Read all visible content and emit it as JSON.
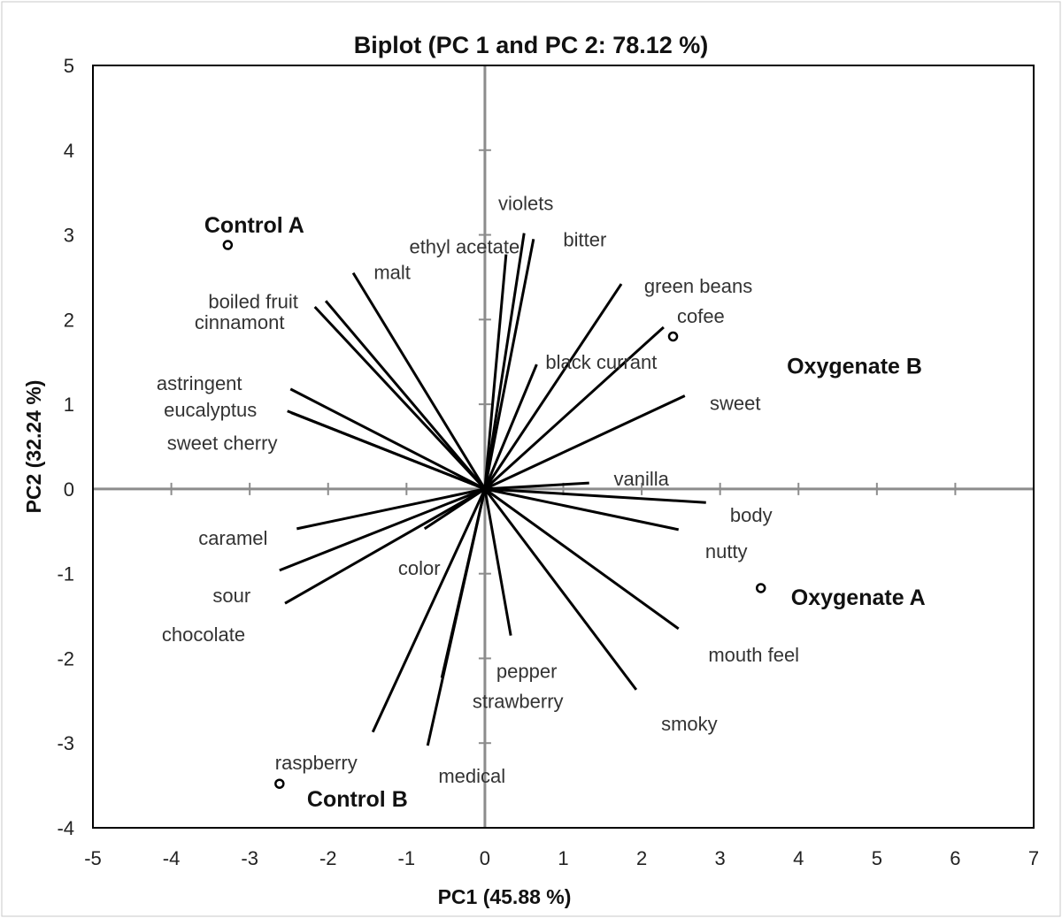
{
  "chart_data": {
    "type": "scatter",
    "title": "Biplot (PC 1 and PC 2: 78.12 %)",
    "xlabel": "PC1 (45.88 %)",
    "ylabel": "PC2 (32.24 %)",
    "xlim": [
      -5,
      7
    ],
    "ylim": [
      -4,
      5
    ],
    "xticks": [
      "-5",
      "-4",
      "-3",
      "-2",
      "-1",
      "0",
      "1",
      "2",
      "3",
      "4",
      "5",
      "6",
      "7"
    ],
    "yticks": [
      "5",
      "4",
      "3",
      "2",
      "1",
      "0",
      "-1",
      "-2",
      "-3",
      "-4"
    ],
    "variables": [
      {
        "name": "violets",
        "x": 0.5,
        "y": 3.02
      },
      {
        "name": "bitter",
        "x": 0.62,
        "y": 2.95
      },
      {
        "name": "ethyl acetate",
        "x": 0.27,
        "y": 2.77
      },
      {
        "name": "malt",
        "x": -1.68,
        "y": 2.55
      },
      {
        "name": "boiled fruit",
        "x": -2.03,
        "y": 2.22
      },
      {
        "name": "cinnamont",
        "x": -2.17,
        "y": 2.15
      },
      {
        "name": "green beans",
        "x": 1.74,
        "y": 2.42
      },
      {
        "name": "cofee",
        "x": 2.28,
        "y": 1.91
      },
      {
        "name": "black currant",
        "x": 0.66,
        "y": 1.47
      },
      {
        "name": "sweet",
        "x": 2.55,
        "y": 1.1
      },
      {
        "name": "astringent",
        "x": -2.48,
        "y": 1.18
      },
      {
        "name": "eucalyptus",
        "x": -2.52,
        "y": 0.92
      },
      {
        "name": "sweet cherry",
        "x": -2.47,
        "y": 0.9
      },
      {
        "name": "vanilla",
        "x": 1.33,
        "y": 0.07
      },
      {
        "name": "body",
        "x": 2.82,
        "y": -0.16
      },
      {
        "name": "nutty",
        "x": 2.47,
        "y": -0.48
      },
      {
        "name": "caramel",
        "x": -2.4,
        "y": -0.47
      },
      {
        "name": "sour",
        "x": -2.62,
        "y": -0.96
      },
      {
        "name": "chocolate",
        "x": -2.55,
        "y": -1.35
      },
      {
        "name": "color",
        "x": -0.77,
        "y": -0.47
      },
      {
        "name": "mouth feel",
        "x": 2.47,
        "y": -1.65
      },
      {
        "name": "smoky",
        "x": 1.93,
        "y": -2.37
      },
      {
        "name": "pepper",
        "x": 0.33,
        "y": -1.73
      },
      {
        "name": "strawberry",
        "x": -0.55,
        "y": -2.23
      },
      {
        "name": "medical",
        "x": -0.73,
        "y": -3.03
      },
      {
        "name": "raspberry",
        "x": -1.43,
        "y": -2.87
      }
    ],
    "observations": [
      {
        "name": "Control A",
        "x": -3.28,
        "y": 2.88
      },
      {
        "name": "Oxygenate B",
        "x": 2.4,
        "y": 1.8
      },
      {
        "name": "Oxygenate A",
        "x": 3.52,
        "y": -1.17
      },
      {
        "name": "Control B",
        "x": -2.62,
        "y": -3.48
      }
    ]
  }
}
